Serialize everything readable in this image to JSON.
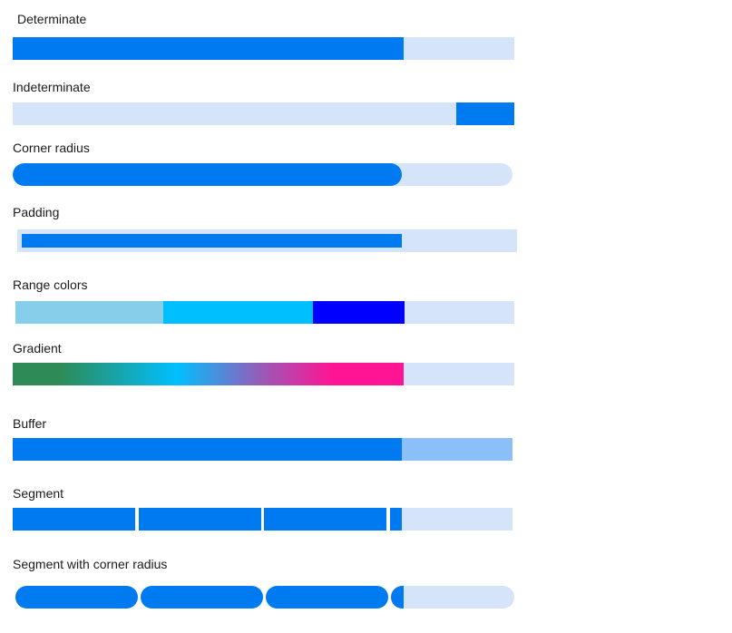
{
  "colors": {
    "track": "#d5e4f9",
    "progress": "#007af0",
    "buffer": "#8ac0f7",
    "range_1": "#87ceeb",
    "range_2": "#00bfff",
    "range_3": "#0000ff",
    "gradient_stops": [
      "#2e8b57",
      "#00bfff",
      "#ff1493"
    ]
  },
  "progress_bars": [
    {
      "id": "determinate",
      "label": "Determinate",
      "value": 0.78
    },
    {
      "id": "indeterminate",
      "label": "Indeterminate",
      "indicator": "moving-segment"
    },
    {
      "id": "corner-radius",
      "label": "Corner radius",
      "value": 0.78
    },
    {
      "id": "padding",
      "label": "Padding",
      "value": 0.77
    },
    {
      "id": "range-colors",
      "label": "Range colors",
      "value": 0.78,
      "ranges": [
        0.3,
        0.6,
        0.78
      ]
    },
    {
      "id": "gradient",
      "label": "Gradient",
      "value": 0.78
    },
    {
      "id": "buffer",
      "label": "Buffer",
      "value": 0.78,
      "buffer": 1.0
    },
    {
      "id": "segment",
      "label": "Segment",
      "value": 0.78,
      "segments": 4
    },
    {
      "id": "segment-corner-radius",
      "label": "Segment with corner radius",
      "value": 0.78,
      "segments": 4
    }
  ]
}
